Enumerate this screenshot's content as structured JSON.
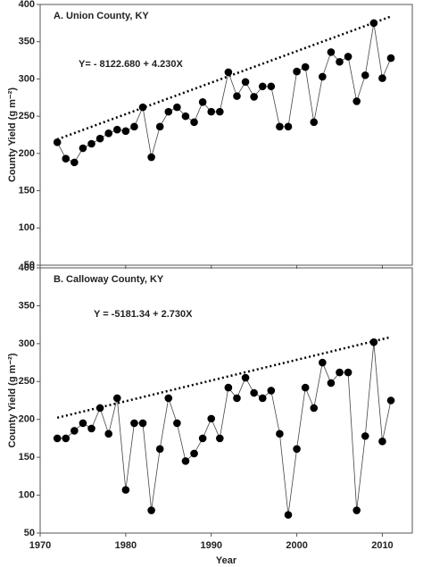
{
  "chart_data": [
    {
      "type": "line",
      "title": "A. Union County, KY",
      "annotation": "Y= - 8122.680 + 4.230X",
      "ylabel": "County Yield (g m⁻²)",
      "x": [
        1972,
        1973,
        1974,
        1975,
        1976,
        1977,
        1978,
        1979,
        1980,
        1981,
        1982,
        1983,
        1984,
        1985,
        1986,
        1987,
        1988,
        1989,
        1990,
        1991,
        1992,
        1993,
        1994,
        1995,
        1996,
        1997,
        1998,
        1999,
        2000,
        2001,
        2002,
        2003,
        2004,
        2005,
        2006,
        2007,
        2008,
        2009,
        2010,
        2011
      ],
      "values": [
        215,
        193,
        188,
        207,
        213,
        220,
        227,
        232,
        230,
        236,
        262,
        195,
        236,
        256,
        262,
        250,
        242,
        269,
        256,
        256,
        309,
        277,
        296,
        276,
        290,
        290,
        236,
        236,
        310,
        316,
        242,
        303,
        336,
        323,
        330,
        270,
        305,
        375,
        301,
        328
      ],
      "trend": {
        "x": [
          1972,
          2011
        ],
        "y": [
          218.9,
          383.9
        ]
      },
      "color": "#000000",
      "xlim": [
        1970,
        2013.5
      ],
      "xticks": [
        1970,
        1980,
        1990,
        2000,
        2010
      ],
      "ylim": [
        50,
        400
      ],
      "yticks": [
        50,
        100,
        150,
        200,
        250,
        300,
        350,
        400
      ]
    },
    {
      "type": "line",
      "title": "B. Calloway County, KY",
      "annotation": "Y = -5181.34 + 2.730X",
      "ylabel": "County Yield (g m⁻²)",
      "xlabel": "Year",
      "x": [
        1972,
        1973,
        1974,
        1975,
        1976,
        1977,
        1978,
        1979,
        1980,
        1981,
        1982,
        1983,
        1984,
        1985,
        1986,
        1987,
        1988,
        1989,
        1990,
        1991,
        1992,
        1993,
        1994,
        1995,
        1996,
        1997,
        1998,
        1999,
        2000,
        2001,
        2002,
        2003,
        2004,
        2005,
        2006,
        2007,
        2008,
        2009,
        2010,
        2011
      ],
      "values": [
        175,
        175,
        185,
        195,
        188,
        215,
        181,
        228,
        107,
        195,
        195,
        80,
        161,
        228,
        195,
        145,
        155,
        175,
        201,
        175,
        242,
        228,
        255,
        235,
        228,
        238,
        181,
        74,
        161,
        242,
        215,
        275,
        248,
        262,
        262,
        80,
        178,
        302,
        171,
        225
      ],
      "trend": {
        "x": [
          1972,
          2011
        ],
        "y": [
          202.2,
          308.7
        ]
      },
      "color": "#000000",
      "xlim": [
        1970,
        2013.5
      ],
      "xticks": [
        1970,
        1980,
        1990,
        2000,
        2010
      ],
      "ylim": [
        50,
        400
      ],
      "yticks": [
        50,
        100,
        150,
        200,
        250,
        300,
        350,
        400
      ]
    }
  ]
}
